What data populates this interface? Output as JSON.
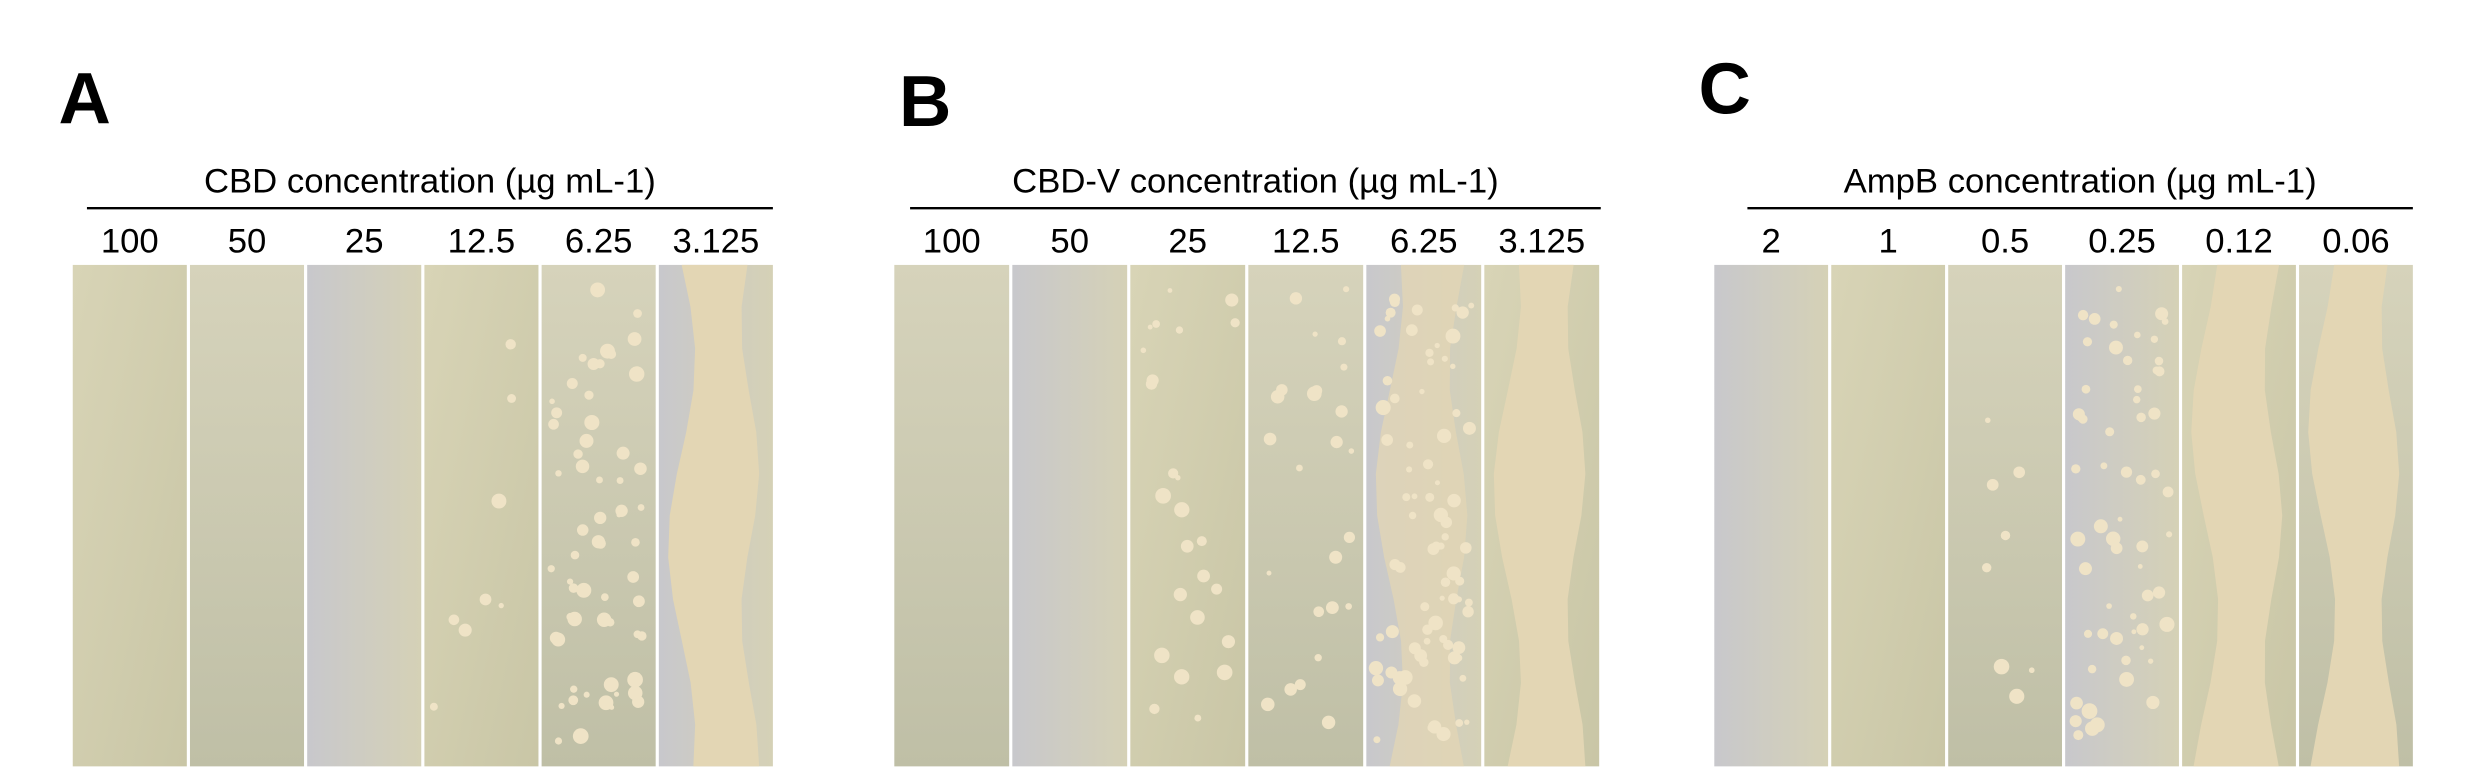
{
  "panels": [
    {
      "letter": "A",
      "title": "CBD concentration (µg mL-1)",
      "concentrations": [
        "100",
        "50",
        "25",
        "12.5",
        "6.25",
        "3.125"
      ]
    },
    {
      "letter": "B",
      "title": "CBD-V concentration (µg mL-1)",
      "concentrations": [
        "100",
        "50",
        "25",
        "12.5",
        "6.25",
        "3.125"
      ]
    },
    {
      "letter": "C",
      "title": "AmpB concentration (µg mL-1)",
      "concentrations": [
        "2",
        "1",
        "0.5",
        "0.25",
        "0.12",
        "0.06"
      ]
    }
  ]
}
